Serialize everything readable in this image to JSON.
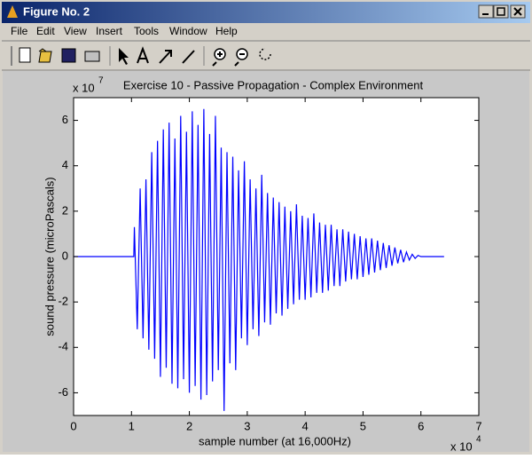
{
  "window": {
    "title": "Figure No. 2",
    "menus": [
      "File",
      "Edit",
      "View",
      "Insert",
      "Tools",
      "Window",
      "Help"
    ]
  },
  "chart_data": {
    "type": "line",
    "title": "Exercise 10 - Passive Propagation - Complex Environment",
    "xlabel": "sample number (at 16,000Hz)",
    "ylabel": "sound pressure (microPascals)",
    "x_scale": {
      "base": "x 10",
      "exponent": "4"
    },
    "y_scale": {
      "base": "x 10",
      "exponent": "7"
    },
    "color": "#0000ff",
    "xlim": [
      0,
      7
    ],
    "xticks": [
      0,
      1,
      2,
      3,
      4,
      5,
      6,
      7
    ],
    "ylim": [
      -7,
      7
    ],
    "yticks": [
      -6,
      -4,
      -2,
      0,
      2,
      4,
      6
    ],
    "x": [
      0,
      1.04,
      1.05,
      1.1,
      1.15,
      1.2,
      1.25,
      1.3,
      1.35,
      1.4,
      1.45,
      1.5,
      1.55,
      1.6,
      1.65,
      1.7,
      1.75,
      1.8,
      1.85,
      1.9,
      1.95,
      2.0,
      2.05,
      2.1,
      2.15,
      2.2,
      2.25,
      2.3,
      2.35,
      2.4,
      2.45,
      2.5,
      2.55,
      2.6,
      2.65,
      2.7,
      2.75,
      2.8,
      2.85,
      2.9,
      2.95,
      3.0,
      3.05,
      3.1,
      3.15,
      3.2,
      3.25,
      3.3,
      3.35,
      3.4,
      3.45,
      3.5,
      3.55,
      3.6,
      3.65,
      3.7,
      3.75,
      3.8,
      3.85,
      3.9,
      3.95,
      4.0,
      4.05,
      4.1,
      4.15,
      4.2,
      4.25,
      4.3,
      4.35,
      4.4,
      4.45,
      4.5,
      4.55,
      4.6,
      4.65,
      4.7,
      4.75,
      4.8,
      4.85,
      4.9,
      4.95,
      5.0,
      5.05,
      5.1,
      5.15,
      5.2,
      5.25,
      5.3,
      5.35,
      5.4,
      5.45,
      5.5,
      5.55,
      5.6,
      5.65,
      5.7,
      5.75,
      5.8,
      5.85,
      5.9,
      5.95,
      6.0,
      6.4
    ],
    "values": [
      0,
      0,
      1.3,
      -3.2,
      3.0,
      -3.6,
      3.4,
      -4.1,
      4.6,
      -4.5,
      5.1,
      -5.3,
      5.6,
      -4.9,
      5.9,
      -5.6,
      5.2,
      -5.8,
      6.2,
      -5.4,
      5.5,
      -6.0,
      6.4,
      -5.7,
      5.8,
      -6.3,
      6.5,
      -6.1,
      5.4,
      -5.5,
      6.2,
      -5.0,
      4.8,
      -6.8,
      4.6,
      -4.7,
      4.4,
      -5.0,
      3.8,
      -3.6,
      4.2,
      -3.9,
      3.4,
      -3.2,
      3.0,
      -3.5,
      3.6,
      -2.9,
      2.8,
      -3.0,
      2.6,
      -2.5,
      2.4,
      -2.6,
      2.2,
      -2.3,
      2.0,
      -2.1,
      2.3,
      -1.9,
      1.8,
      -1.9,
      1.7,
      -1.8,
      1.9,
      -1.6,
      1.5,
      -1.6,
      1.4,
      -1.5,
      1.4,
      -1.3,
      1.2,
      -1.3,
      1.2,
      -1.1,
      1.1,
      -1.0,
      1.0,
      -1.0,
      0.9,
      -0.9,
      0.8,
      -0.8,
      0.8,
      -0.7,
      0.7,
      -0.6,
      0.6,
      -0.5,
      0.5,
      -0.4,
      0.4,
      -0.3,
      0.3,
      -0.25,
      0.2,
      -0.15,
      0.1,
      -0.08,
      0.05,
      0,
      0
    ]
  }
}
